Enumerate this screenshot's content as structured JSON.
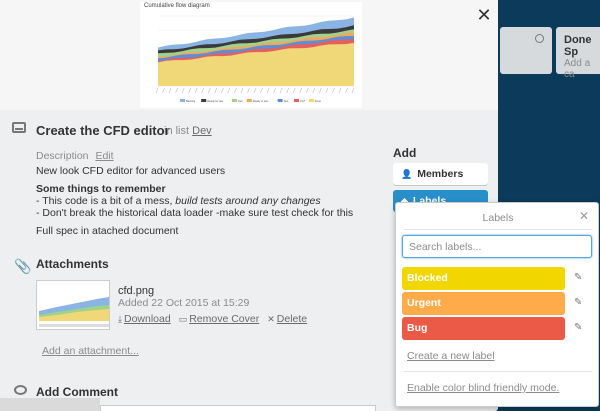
{
  "board": {
    "list_done_title": "Done Sp",
    "list_done_sub": "Add a ca"
  },
  "chart_data": {
    "type": "area",
    "title": "Cumulative flow diagram",
    "series": [
      {
        "name": "Backlog",
        "color": "#8ab4e3"
      },
      {
        "name": "Ready for dev",
        "color": "#3a3a3a"
      },
      {
        "name": "Dev",
        "color": "#9fd38b"
      },
      {
        "name": "Ready to test",
        "color": "#f0a860"
      },
      {
        "name": "Test",
        "color": "#5c8fd6"
      },
      {
        "name": "UAT",
        "color": "#e26060"
      },
      {
        "name": "Done",
        "color": "#f0d878"
      }
    ]
  },
  "card": {
    "title": "Create the CFD editor",
    "in_list_prefix": "in list",
    "list_name": "Dev",
    "description_label": "Description",
    "edit_label": "Edit",
    "description_text": "New look CFD editor for advanced users",
    "remember_heading": "Some things to remember",
    "bullet1_prefix": "- This code is a bit of a mess, ",
    "bullet1_italic": "build tests around any changes",
    "bullet2": "- Don't break the historical data loader -make sure test check for this",
    "spec_text": "Full spec in atached document"
  },
  "attachments": {
    "title": "Attachments",
    "file_name": "cfd.png",
    "added": "Added 22 Oct 2015 at 15:29",
    "download": "Download",
    "remove_cover": "Remove Cover",
    "delete": "Delete",
    "add_attachment": "Add an attachment..."
  },
  "comment": {
    "title": "Add Comment"
  },
  "sidebar": {
    "add_heading": "Add",
    "members": "Members",
    "labels": "Labels"
  },
  "labels_popover": {
    "title": "Labels",
    "search_placeholder": "Search labels...",
    "labels": [
      {
        "name": "Blocked",
        "color": "#f2d600"
      },
      {
        "name": "Urgent",
        "color": "#ffab4a"
      },
      {
        "name": "Bug",
        "color": "#eb5a46"
      }
    ],
    "create_label": "Create a new label",
    "color_blind": "Enable color blind friendly mode."
  }
}
